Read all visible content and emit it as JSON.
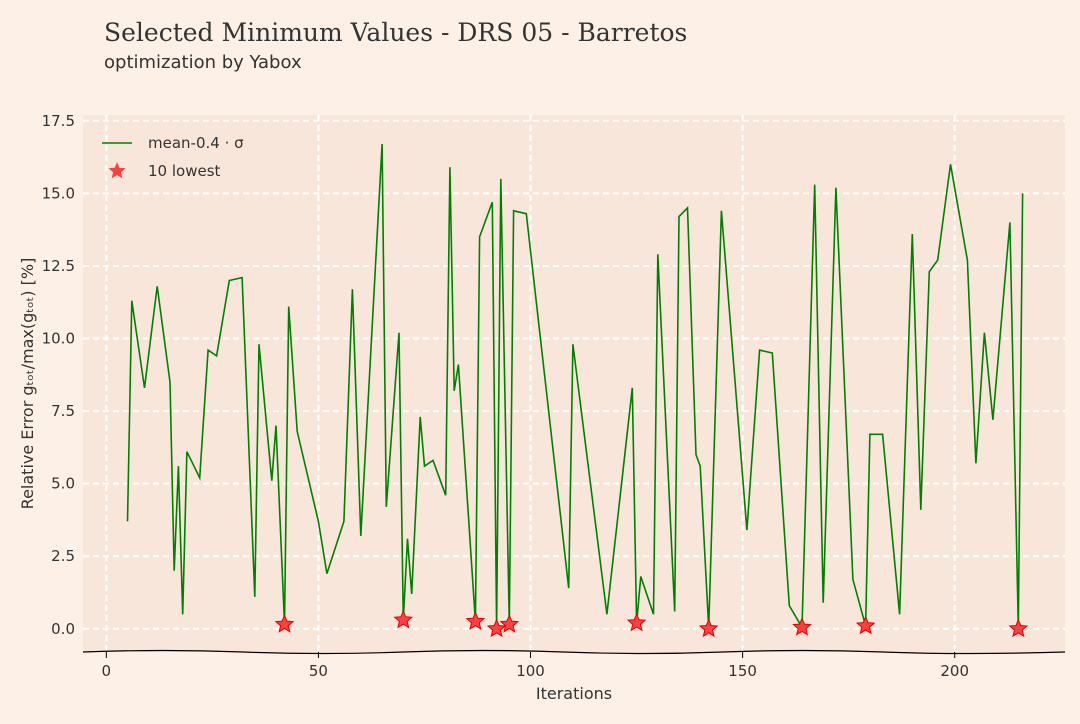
{
  "chart_data": {
    "type": "line",
    "title": "Selected Minimum Values - DRS 05 - Barretos",
    "subtitle": "optimization by Yabox",
    "xlabel": "Iterations",
    "ylabel": "Relative Error gₜₒₜ/max(gₜₒₜ) [%]",
    "xlim": [
      -5.5,
      226
    ],
    "ylim": [
      -0.8,
      17.7
    ],
    "xticks": [
      0,
      50,
      100,
      150,
      200
    ],
    "yticks": [
      {
        "value": 0,
        "label": "0.0"
      },
      2.5,
      {
        "value": 5,
        "label": "5.0"
      },
      7.5,
      {
        "value": 10,
        "label": "10.0"
      },
      12.5,
      {
        "value": 15,
        "label": "15.0"
      },
      17.5
    ],
    "grid": true,
    "legend": "upper left",
    "series": [
      {
        "name": "mean-0.4 · σ",
        "type": "line",
        "color": "#008000",
        "x": [
          5,
          6,
          9,
          12,
          15,
          16,
          17,
          18,
          19,
          22,
          24,
          26,
          29,
          32,
          35,
          36,
          39,
          40,
          42,
          43,
          45,
          50,
          52,
          56,
          58,
          60,
          65,
          66,
          69,
          70,
          71,
          72,
          74,
          75,
          77,
          80,
          81,
          82,
          83,
          87,
          88,
          91,
          92,
          93,
          95,
          96,
          99,
          109,
          110,
          118,
          124,
          125,
          126,
          129,
          130,
          134,
          135,
          137,
          139,
          140,
          142,
          145,
          151,
          154,
          157,
          161,
          164,
          167,
          169,
          172,
          176,
          179,
          180,
          183,
          187,
          190,
          192,
          194,
          196,
          199,
          203,
          205,
          207,
          209,
          213,
          215,
          216
        ],
        "values": [
          3.7,
          11.3,
          8.3,
          11.8,
          8.5,
          2.0,
          5.6,
          0.5,
          6.1,
          5.2,
          9.6,
          9.4,
          12.0,
          12.1,
          1.1,
          9.8,
          5.1,
          7.0,
          0.15,
          11.1,
          6.8,
          3.7,
          1.9,
          3.7,
          11.7,
          3.2,
          16.7,
          4.2,
          10.2,
          0.3,
          3.1,
          1.2,
          7.3,
          5.6,
          5.8,
          4.6,
          15.9,
          8.2,
          9.1,
          0.25,
          13.5,
          14.7,
          0.03,
          15.5,
          0.15,
          14.4,
          14.3,
          1.4,
          9.8,
          0.5,
          8.3,
          0.2,
          1.8,
          0.5,
          12.9,
          0.6,
          14.2,
          14.5,
          6.0,
          5.6,
          0.03,
          14.4,
          3.4,
          9.6,
          9.5,
          0.8,
          0.05,
          15.3,
          0.9,
          15.2,
          1.7,
          0.1,
          6.7,
          6.7,
          0.5,
          13.6,
          4.1,
          12.3,
          12.7,
          16.0,
          12.7,
          5.7,
          10.2,
          7.2,
          14.0,
          0.03,
          15.0
        ]
      },
      {
        "name": "10 lowest",
        "type": "scatter",
        "marker": "star",
        "color": "#ff4040",
        "x": [
          42,
          70,
          87,
          92,
          95,
          125,
          142,
          164,
          179,
          215
        ],
        "values": [
          0.15,
          0.3,
          0.25,
          0.0,
          0.15,
          0.2,
          0.0,
          0.05,
          0.1,
          0.0
        ]
      }
    ]
  }
}
